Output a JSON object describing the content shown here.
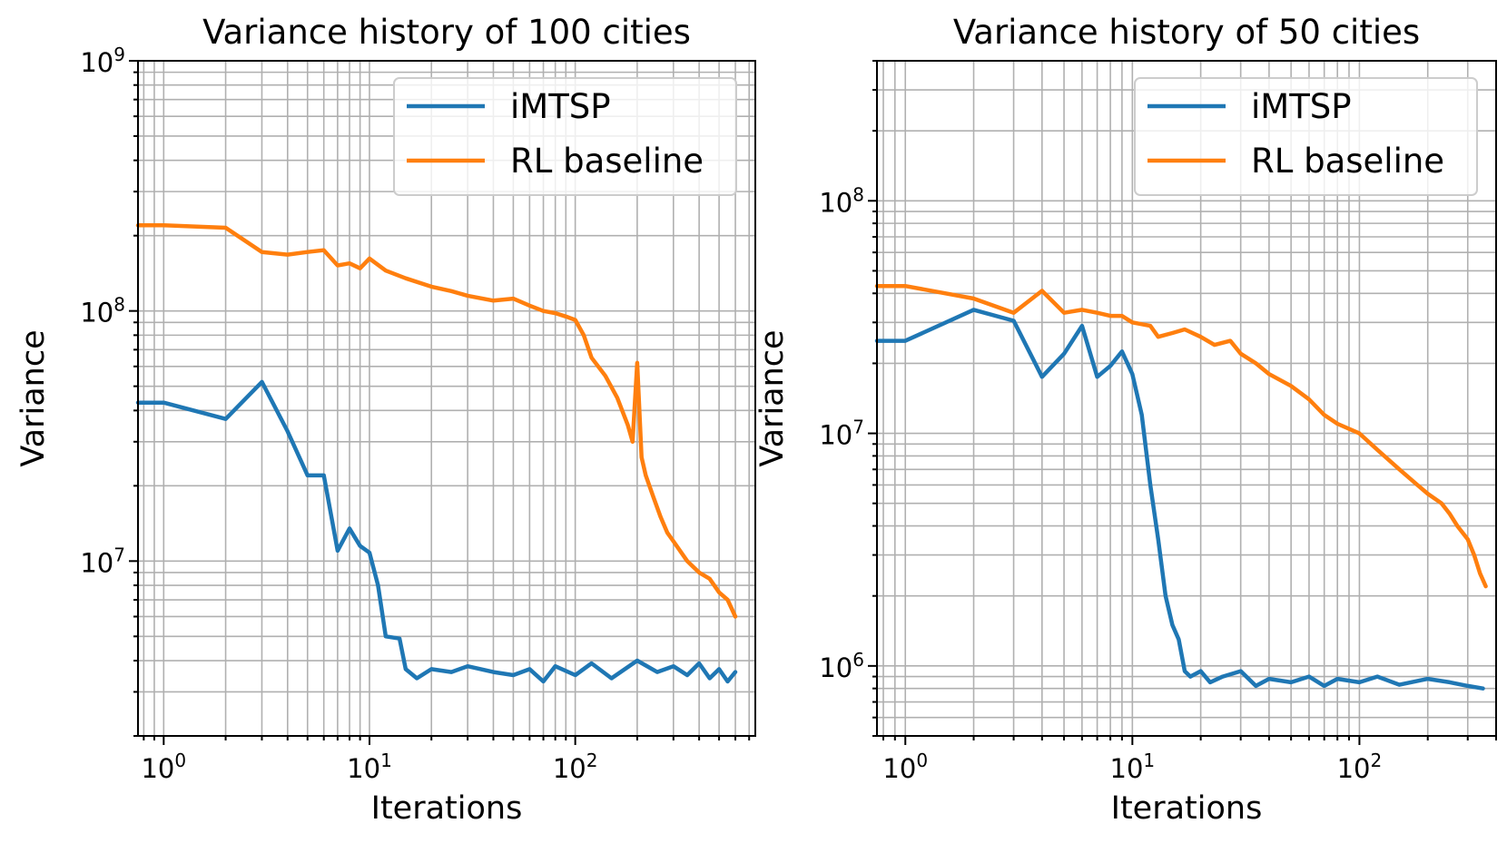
{
  "colors": {
    "imtsp": "#1f77b4",
    "rl": "#ff7f0e",
    "grid": "#b0b0b0"
  },
  "chart_data": [
    {
      "type": "line",
      "title": "Variance history of 100 cities",
      "xlabel": "Iterations",
      "ylabel": "Variance",
      "xscale": "log",
      "yscale": "log",
      "xlim": [
        0.75,
        750
      ],
      "ylim": [
        2000000,
        1000000000
      ],
      "xticks": [
        {
          "base": "10",
          "exp": "0"
        },
        {
          "base": "10",
          "exp": "1"
        },
        {
          "base": "10",
          "exp": "2"
        }
      ],
      "xtick_values": [
        1,
        10,
        100
      ],
      "yticks": [
        {
          "base": "10",
          "exp": "7"
        },
        {
          "base": "10",
          "exp": "8"
        },
        {
          "base": "10",
          "exp": "9"
        }
      ],
      "ytick_values": [
        10000000,
        100000000,
        1000000000
      ],
      "grid": true,
      "legend": "top-right",
      "series": [
        {
          "name": "iMTSP",
          "color": "#1f77b4",
          "x": [
            0.75,
            1,
            2,
            3,
            4,
            5,
            6,
            7,
            8,
            9,
            10,
            11,
            12,
            14,
            15,
            17,
            20,
            25,
            30,
            40,
            50,
            60,
            70,
            80,
            100,
            120,
            150,
            200,
            250,
            300,
            350,
            400,
            450,
            500,
            550,
            600
          ],
          "y": [
            43000000,
            43000000,
            37000000,
            52000000,
            33000000,
            22000000,
            22000000,
            11000000,
            13500000,
            11500000,
            10800000,
            8000000,
            5000000,
            4900000,
            3700000,
            3400000,
            3700000,
            3600000,
            3800000,
            3600000,
            3500000,
            3700000,
            3300000,
            3800000,
            3500000,
            3900000,
            3400000,
            4000000,
            3600000,
            3800000,
            3500000,
            3900000,
            3400000,
            3700000,
            3300000,
            3600000
          ]
        },
        {
          "name": "RL baseline",
          "color": "#ff7f0e",
          "x": [
            0.75,
            1,
            2,
            3,
            4,
            5,
            6,
            7,
            8,
            9,
            10,
            12,
            15,
            20,
            25,
            30,
            40,
            50,
            60,
            70,
            80,
            90,
            100,
            110,
            120,
            140,
            160,
            180,
            190,
            200,
            210,
            220,
            240,
            260,
            280,
            300,
            350,
            400,
            450,
            500,
            550,
            600
          ],
          "y": [
            220000000,
            220000000,
            215000000,
            172000000,
            168000000,
            172000000,
            175000000,
            152000000,
            155000000,
            148000000,
            162000000,
            145000000,
            135000000,
            125000000,
            120000000,
            115000000,
            110000000,
            112000000,
            105000000,
            100000000,
            98000000,
            95000000,
            92000000,
            80000000,
            65000000,
            55000000,
            45000000,
            35000000,
            30000000,
            62000000,
            26000000,
            22000000,
            18000000,
            15000000,
            13000000,
            12000000,
            10000000,
            9000000,
            8500000,
            7500000,
            7000000,
            6000000
          ]
        }
      ]
    },
    {
      "type": "line",
      "title": "Variance history of 50 cities",
      "xlabel": "Iterations",
      "ylabel": "Variance",
      "xscale": "log",
      "yscale": "log",
      "xlim": [
        0.75,
        400
      ],
      "ylim": [
        500000,
        400000000
      ],
      "xticks": [
        {
          "base": "10",
          "exp": "0"
        },
        {
          "base": "10",
          "exp": "1"
        },
        {
          "base": "10",
          "exp": "2"
        }
      ],
      "xtick_values": [
        1,
        10,
        100
      ],
      "yticks": [
        {
          "base": "10",
          "exp": "6"
        },
        {
          "base": "10",
          "exp": "7"
        },
        {
          "base": "10",
          "exp": "8"
        }
      ],
      "ytick_values": [
        1000000,
        10000000,
        100000000
      ],
      "grid": true,
      "legend": "top-right",
      "series": [
        {
          "name": "iMTSP",
          "color": "#1f77b4",
          "x": [
            0.75,
            1,
            2,
            3,
            4,
            5,
            6,
            7,
            8,
            9,
            10,
            11,
            12,
            13,
            14,
            15,
            16,
            17,
            18,
            20,
            22,
            25,
            30,
            35,
            40,
            50,
            60,
            70,
            80,
            100,
            120,
            150,
            200,
            250,
            300,
            350
          ],
          "y": [
            25000000,
            25000000,
            34000000,
            30500000,
            17500000,
            22000000,
            29000000,
            17500000,
            19500000,
            22500000,
            18000000,
            12000000,
            6000000,
            3500000,
            2000000,
            1500000,
            1300000,
            950000,
            900000,
            950000,
            850000,
            900000,
            950000,
            820000,
            880000,
            850000,
            900000,
            820000,
            880000,
            850000,
            900000,
            830000,
            880000,
            850000,
            820000,
            800000
          ]
        },
        {
          "name": "RL baseline",
          "color": "#ff7f0e",
          "x": [
            0.75,
            1,
            2,
            3,
            4,
            5,
            6,
            7,
            8,
            9,
            10,
            12,
            13,
            15,
            17,
            20,
            23,
            27,
            30,
            35,
            40,
            50,
            60,
            70,
            80,
            100,
            120,
            150,
            180,
            200,
            230,
            250,
            270,
            300,
            320,
            340,
            360
          ],
          "y": [
            43000000,
            43000000,
            38000000,
            33000000,
            41000000,
            33000000,
            34000000,
            33000000,
            32000000,
            32000000,
            30000000,
            29000000,
            26000000,
            27000000,
            28000000,
            26000000,
            24000000,
            25000000,
            22000000,
            20000000,
            18000000,
            16000000,
            14000000,
            12000000,
            11000000,
            10000000,
            8500000,
            7000000,
            6000000,
            5500000,
            5000000,
            4500000,
            4000000,
            3500000,
            3000000,
            2500000,
            2200000
          ]
        }
      ]
    }
  ]
}
